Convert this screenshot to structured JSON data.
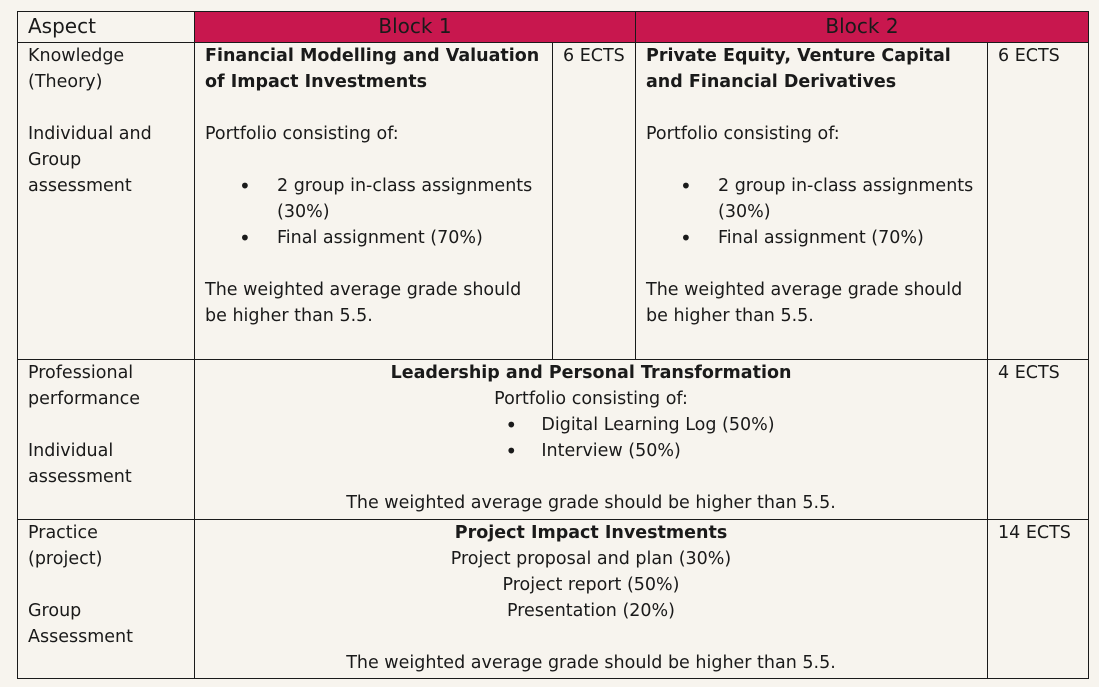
{
  "header": {
    "aspect": "Aspect",
    "block1": "Block 1",
    "block2": "Block 2"
  },
  "rows": [
    {
      "aspect_line1": "Knowledge",
      "aspect_line2": "(Theory)",
      "aspect_line3": "Individual and",
      "aspect_line4": "Group",
      "aspect_line5": "assessment",
      "block1": {
        "title_line1": "Financial Modelling and Valuation",
        "title_line2": "of Impact Investments",
        "portfolio": "Portfolio consisting of:",
        "items": [
          "2 group in-class assignments",
          "(30%)",
          "Final assignment (70%)"
        ],
        "grade_line1": "The weighted average grade should",
        "grade_line2": "be higher than 5.5.",
        "ects": "6 ECTS"
      },
      "block2": {
        "title_line1": "Private Equity, Venture Capital",
        "title_line2": "and Financial Derivatives",
        "portfolio": "Portfolio consisting of:",
        "items": [
          "2 group in-class assignments",
          "(30%)",
          "Final assignment (70%)"
        ],
        "grade_line1": "The weighted average grade should",
        "grade_line2": "be higher than 5.5.",
        "ects": "6 ECTS"
      }
    },
    {
      "aspect_line1": "Professional",
      "aspect_line2": "performance",
      "aspect_line3": "Individual",
      "aspect_line4": "assessment",
      "title": "Leadership and Personal Transformation",
      "portfolio": "Portfolio consisting of:",
      "items": [
        "Digital Learning Log (50%)",
        "Interview (50%)"
      ],
      "grade": "The weighted average grade should be higher than 5.5.",
      "ects": "4 ECTS"
    },
    {
      "aspect_line1": "Practice",
      "aspect_line2": "(project)",
      "aspect_line3": "Group",
      "aspect_line4": "Assessment",
      "title": "Project Impact Investments",
      "lines": [
        "Project proposal and plan (30%)",
        "Project report (50%)",
        "Presentation (20%)"
      ],
      "grade": "The weighted average grade should be higher than 5.5.",
      "ects": "14 ECTS"
    }
  ]
}
